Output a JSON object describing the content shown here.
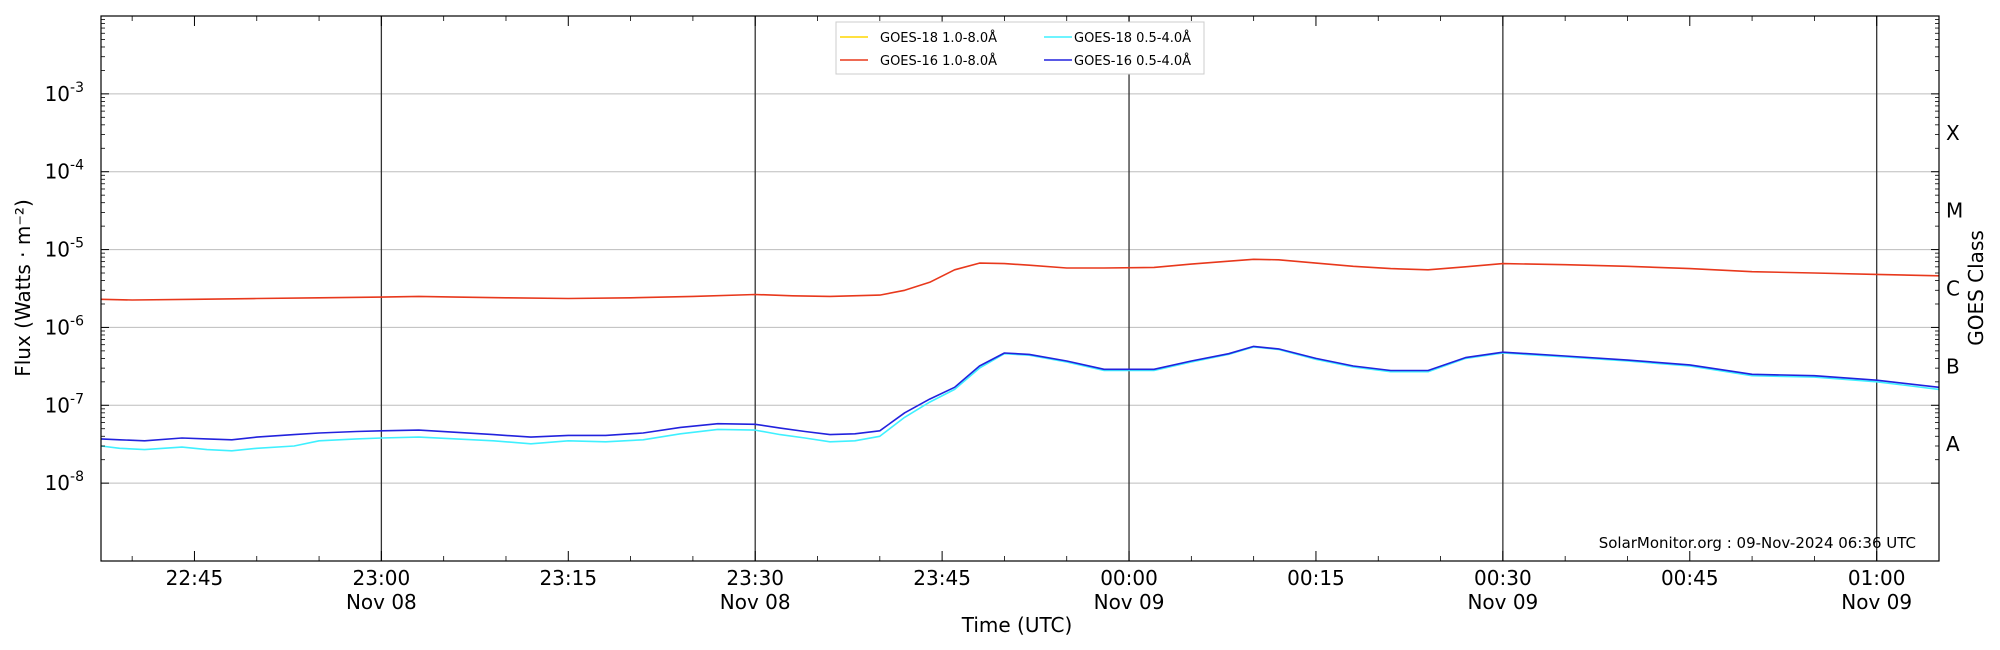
{
  "chart_data": {
    "type": "line",
    "title": "",
    "xlabel": "Time (UTC)",
    "ylabel": "Flux (Watts · m⁻²)",
    "right_ylabel": "GOES Class",
    "attribution": "SolarMonitor.org : 09-Nov-2024 06:36 UTC",
    "yscale": "log",
    "ylim": [
      1e-09,
      0.01
    ],
    "xlim_minutes_from_2230": [
      7.5,
      155
    ],
    "grid": "horizontal",
    "legend_position": "top-center",
    "y_ticks": [
      {
        "exp": "-8",
        "value": 1e-08
      },
      {
        "exp": "-7",
        "value": 1e-07
      },
      {
        "exp": "-6",
        "value": 1e-06
      },
      {
        "exp": "-5",
        "value": 1e-05
      },
      {
        "exp": "-4",
        "value": 0.0001
      },
      {
        "exp": "-3",
        "value": 0.001
      }
    ],
    "x_ticks": [
      {
        "time": "22:45",
        "date": "",
        "minute": 15,
        "day_line": false
      },
      {
        "time": "23:00",
        "date": "Nov 08",
        "minute": 30,
        "day_line": true
      },
      {
        "time": "23:15",
        "date": "",
        "minute": 45,
        "day_line": false
      },
      {
        "time": "23:30",
        "date": "Nov 08",
        "minute": 60,
        "day_line": true
      },
      {
        "time": "23:45",
        "date": "",
        "minute": 75,
        "day_line": false
      },
      {
        "time": "00:00",
        "date": "Nov 09",
        "minute": 90,
        "day_line": true
      },
      {
        "time": "00:15",
        "date": "",
        "minute": 105,
        "day_line": false
      },
      {
        "time": "00:30",
        "date": "Nov 09",
        "minute": 120,
        "day_line": true
      },
      {
        "time": "00:45",
        "date": "",
        "minute": 135,
        "day_line": false
      },
      {
        "time": "01:00",
        "date": "Nov 09",
        "minute": 150,
        "day_line": true
      }
    ],
    "goes_classes": [
      {
        "label": "A",
        "value": 3.16e-08
      },
      {
        "label": "B",
        "value": 3.16e-07
      },
      {
        "label": "C",
        "value": 3.16e-06
      },
      {
        "label": "M",
        "value": 3.16e-05
      },
      {
        "label": "X",
        "value": 0.000316
      }
    ],
    "legend": [
      {
        "label": "GOES-18 1.0-8.0Å",
        "color": "#ffd700"
      },
      {
        "label": "GOES-16 1.0-8.0Å",
        "color": "#e8381c"
      },
      {
        "label": "GOES-18 0.5-4.0Å",
        "color": "#3ff0ff"
      },
      {
        "label": "GOES-16 0.5-4.0Å",
        "color": "#2222dd"
      }
    ],
    "series": [
      {
        "name": "GOES-16 1.0-8.0Å",
        "color": "#e8381c",
        "x": [
          7.5,
          10,
          15,
          20,
          25,
          30,
          33,
          36,
          40,
          45,
          50,
          55,
          60,
          63,
          66,
          70,
          72,
          74,
          76,
          78,
          80,
          82,
          85,
          88,
          92,
          95,
          98,
          100,
          102,
          105,
          108,
          111,
          114,
          117,
          120,
          125,
          130,
          135,
          140,
          145,
          150,
          155
        ],
        "values": [
          2.3e-06,
          2.25e-06,
          2.3e-06,
          2.35e-06,
          2.4e-06,
          2.45e-06,
          2.5e-06,
          2.45e-06,
          2.4e-06,
          2.35e-06,
          2.4e-06,
          2.5e-06,
          2.65e-06,
          2.55e-06,
          2.5e-06,
          2.6e-06,
          3e-06,
          3.8e-06,
          5.5e-06,
          6.7e-06,
          6.6e-06,
          6.3e-06,
          5.8e-06,
          5.8e-06,
          5.9e-06,
          6.5e-06,
          7.1e-06,
          7.5e-06,
          7.4e-06,
          6.7e-06,
          6.1e-06,
          5.7e-06,
          5.5e-06,
          6e-06,
          6.6e-06,
          6.4e-06,
          6.1e-06,
          5.7e-06,
          5.2e-06,
          5e-06,
          4.8e-06,
          4.6e-06
        ]
      },
      {
        "name": "GOES-18 0.5-4.0Å",
        "color": "#3ff0ff",
        "x": [
          7.5,
          9,
          11,
          14,
          16,
          18,
          20,
          23,
          25,
          28,
          30,
          33,
          36,
          39,
          42,
          45,
          48,
          51,
          54,
          57,
          60,
          62,
          64,
          66,
          68,
          70,
          72,
          74,
          76,
          78,
          80,
          82,
          85,
          88,
          92,
          95,
          98,
          100,
          102,
          105,
          108,
          111,
          114,
          117,
          120,
          125,
          130,
          135,
          140,
          145,
          150,
          155
        ],
        "values": [
          3e-08,
          2.8e-08,
          2.7e-08,
          2.9e-08,
          2.7e-08,
          2.6e-08,
          2.8e-08,
          3e-08,
          3.5e-08,
          3.7e-08,
          3.8e-08,
          3.9e-08,
          3.7e-08,
          3.5e-08,
          3.2e-08,
          3.5e-08,
          3.4e-08,
          3.6e-08,
          4.3e-08,
          4.9e-08,
          4.8e-08,
          4.2e-08,
          3.8e-08,
          3.4e-08,
          3.5e-08,
          4e-08,
          7e-08,
          1.1e-07,
          1.6e-07,
          3e-07,
          4.6e-07,
          4.4e-07,
          3.6e-07,
          2.8e-07,
          2.8e-07,
          3.6e-07,
          4.5e-07,
          5.6e-07,
          5.2e-07,
          3.9e-07,
          3.1e-07,
          2.7e-07,
          2.7e-07,
          4e-07,
          4.7e-07,
          4.2e-07,
          3.7e-07,
          3.2e-07,
          2.4e-07,
          2.3e-07,
          2e-07,
          1.6e-07
        ]
      },
      {
        "name": "GOES-16 0.5-4.0Å",
        "color": "#2222dd",
        "x": [
          7.5,
          9,
          11,
          14,
          16,
          18,
          20,
          23,
          25,
          28,
          30,
          33,
          36,
          39,
          42,
          45,
          48,
          51,
          54,
          57,
          60,
          62,
          64,
          66,
          68,
          70,
          72,
          74,
          76,
          78,
          80,
          82,
          85,
          88,
          92,
          95,
          98,
          100,
          102,
          105,
          108,
          111,
          114,
          117,
          120,
          125,
          130,
          135,
          140,
          145,
          150,
          155
        ],
        "values": [
          3.7e-08,
          3.6e-08,
          3.5e-08,
          3.8e-08,
          3.7e-08,
          3.6e-08,
          3.9e-08,
          4.2e-08,
          4.4e-08,
          4.6e-08,
          4.7e-08,
          4.8e-08,
          4.5e-08,
          4.2e-08,
          3.9e-08,
          4.1e-08,
          4.1e-08,
          4.4e-08,
          5.2e-08,
          5.8e-08,
          5.7e-08,
          5.1e-08,
          4.6e-08,
          4.2e-08,
          4.3e-08,
          4.7e-08,
          8e-08,
          1.2e-07,
          1.7e-07,
          3.2e-07,
          4.7e-07,
          4.5e-07,
          3.7e-07,
          2.9e-07,
          2.9e-07,
          3.7e-07,
          4.6e-07,
          5.7e-07,
          5.3e-07,
          4e-07,
          3.2e-07,
          2.8e-07,
          2.8e-07,
          4.1e-07,
          4.8e-07,
          4.3e-07,
          3.8e-07,
          3.3e-07,
          2.5e-07,
          2.4e-07,
          2.1e-07,
          1.7e-07
        ]
      }
    ]
  }
}
